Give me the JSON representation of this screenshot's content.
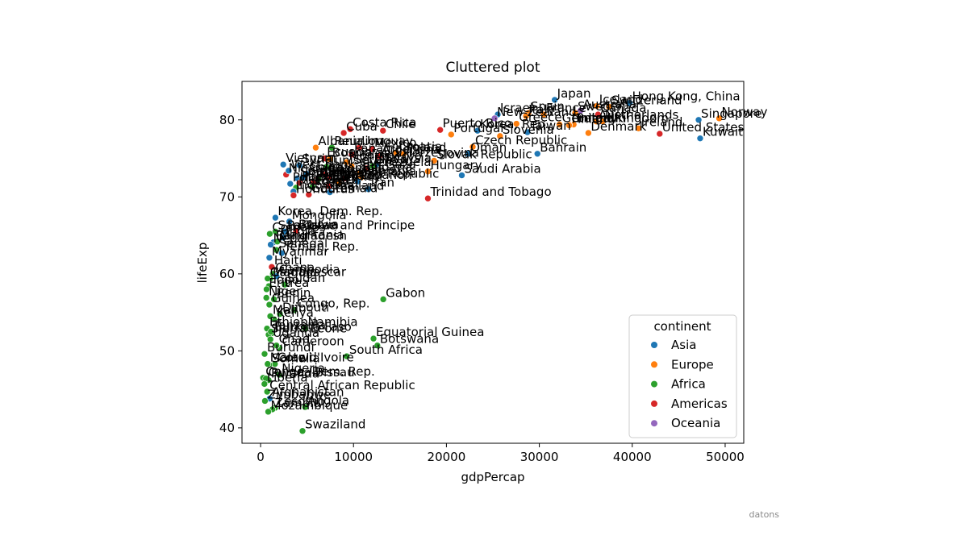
{
  "chart_data": {
    "type": "scatter",
    "title": "Cluttered plot",
    "xlabel": "gdpPercap",
    "ylabel": "lifeExp",
    "xlim": [
      -2000,
      52000
    ],
    "ylim": [
      38,
      85
    ],
    "xticks": [
      0,
      10000,
      20000,
      30000,
      40000,
      50000
    ],
    "yticks": [
      40,
      50,
      60,
      70,
      80
    ],
    "grid": false,
    "legend": {
      "title": "continent",
      "placement": "lower right",
      "entries": [
        "Asia",
        "Europe",
        "Africa",
        "Americas",
        "Oceania"
      ]
    },
    "colors": {
      "Asia": "#1f77b4",
      "Europe": "#ff7f0e",
      "Africa": "#2ca02c",
      "Americas": "#d62728",
      "Oceania": "#9467bd"
    },
    "points": [
      {
        "label": "Japan",
        "x": 31656,
        "y": 82.6,
        "continent": "Asia"
      },
      {
        "label": "Hong Kong, China",
        "x": 39725,
        "y": 82.2,
        "continent": "Asia"
      },
      {
        "label": "Iceland",
        "x": 36181,
        "y": 81.8,
        "continent": "Europe"
      },
      {
        "label": "Switzerland",
        "x": 37506,
        "y": 81.7,
        "continent": "Europe"
      },
      {
        "label": "Australia",
        "x": 34435,
        "y": 81.2,
        "continent": "Oceania"
      },
      {
        "label": "Spain",
        "x": 28821,
        "y": 80.9,
        "continent": "Europe"
      },
      {
        "label": "Sweden",
        "x": 33860,
        "y": 80.9,
        "continent": "Europe"
      },
      {
        "label": "Israel",
        "x": 25523,
        "y": 80.7,
        "continent": "Asia"
      },
      {
        "label": "France",
        "x": 30470,
        "y": 80.7,
        "continent": "Europe"
      },
      {
        "label": "Canada",
        "x": 36319,
        "y": 80.7,
        "continent": "Americas"
      },
      {
        "label": "Italy",
        "x": 28570,
        "y": 80.5,
        "continent": "Europe"
      },
      {
        "label": "New Zealand",
        "x": 25185,
        "y": 80.2,
        "continent": "Oceania"
      },
      {
        "label": "Norway",
        "x": 49357,
        "y": 80.2,
        "continent": "Europe"
      },
      {
        "label": "Austria",
        "x": 36126,
        "y": 79.8,
        "continent": "Europe"
      },
      {
        "label": "Netherlands",
        "x": 36798,
        "y": 79.8,
        "continent": "Europe"
      },
      {
        "label": "Greece",
        "x": 27538,
        "y": 79.5,
        "continent": "Europe"
      },
      {
        "label": "Belgium",
        "x": 33693,
        "y": 79.4,
        "continent": "Europe"
      },
      {
        "label": "United Kingdom",
        "x": 33203,
        "y": 79.4,
        "continent": "Europe"
      },
      {
        "label": "Germany",
        "x": 32170,
        "y": 79.4,
        "continent": "Europe"
      },
      {
        "label": "Finland",
        "x": 33207,
        "y": 79.3,
        "continent": "Europe"
      },
      {
        "label": "Ireland",
        "x": 40676,
        "y": 78.9,
        "continent": "Europe"
      },
      {
        "label": "Korea, Rep.",
        "x": 23348,
        "y": 78.6,
        "continent": "Asia"
      },
      {
        "label": "Taiwan",
        "x": 28718,
        "y": 78.4,
        "continent": "Asia"
      },
      {
        "label": "Denmark",
        "x": 35278,
        "y": 78.3,
        "continent": "Europe"
      },
      {
        "label": "Puerto Rico",
        "x": 19329,
        "y": 78.7,
        "continent": "Americas"
      },
      {
        "label": "Portugal",
        "x": 20510,
        "y": 78.1,
        "continent": "Europe"
      },
      {
        "label": "Slovenia",
        "x": 25768,
        "y": 77.9,
        "continent": "Europe"
      },
      {
        "label": "Singapore",
        "x": 47143,
        "y": 80.0,
        "continent": "Asia"
      },
      {
        "label": "United States",
        "x": 42952,
        "y": 78.2,
        "continent": "Americas"
      },
      {
        "label": "Kuwait",
        "x": 47307,
        "y": 77.6,
        "continent": "Asia"
      },
      {
        "label": "Costa Rica",
        "x": 9645,
        "y": 78.8,
        "continent": "Americas"
      },
      {
        "label": "Chile",
        "x": 13172,
        "y": 78.6,
        "continent": "Americas"
      },
      {
        "label": "Cuba",
        "x": 8948,
        "y": 78.3,
        "continent": "Americas"
      },
      {
        "label": "Czech Republic",
        "x": 22833,
        "y": 76.5,
        "continent": "Europe"
      },
      {
        "label": "Oman",
        "x": 22316,
        "y": 75.6,
        "continent": "Asia"
      },
      {
        "label": "Bahrain",
        "x": 29796,
        "y": 75.6,
        "continent": "Asia"
      },
      {
        "label": "Slovak Republic",
        "x": 18678,
        "y": 74.7,
        "continent": "Europe"
      },
      {
        "label": "Croatia",
        "x": 14619,
        "y": 75.7,
        "continent": "Europe"
      },
      {
        "label": "Hungary",
        "x": 18009,
        "y": 73.3,
        "continent": "Europe"
      },
      {
        "label": "Saudi Arabia",
        "x": 21655,
        "y": 72.8,
        "continent": "Asia"
      },
      {
        "label": "Trinidad and Tobago",
        "x": 18009,
        "y": 69.8,
        "continent": "Americas"
      },
      {
        "label": "Albania",
        "x": 5937,
        "y": 76.4,
        "continent": "Europe"
      },
      {
        "label": "Panama",
        "x": 9809,
        "y": 75.5,
        "continent": "Americas"
      },
      {
        "label": "Ecuador",
        "x": 6873,
        "y": 75.0,
        "continent": "Americas"
      },
      {
        "label": "Mexico",
        "x": 11978,
        "y": 76.2,
        "continent": "Americas"
      },
      {
        "label": "Argentina",
        "x": 12779,
        "y": 75.3,
        "continent": "Americas"
      },
      {
        "label": "Uruguay",
        "x": 10611,
        "y": 76.4,
        "continent": "Americas"
      },
      {
        "label": "Poland",
        "x": 15390,
        "y": 75.6,
        "continent": "Europe"
      },
      {
        "label": "Montenegro",
        "x": 9254,
        "y": 74.5,
        "continent": "Europe"
      },
      {
        "label": "Bosnia and Herzegovina",
        "x": 7446,
        "y": 74.9,
        "continent": "Europe"
      },
      {
        "label": "Serbia",
        "x": 9787,
        "y": 74.0,
        "continent": "Europe"
      },
      {
        "label": "Bulgaria",
        "x": 10681,
        "y": 73.0,
        "continent": "Europe"
      },
      {
        "label": "Romania",
        "x": 10808,
        "y": 72.5,
        "continent": "Europe"
      },
      {
        "label": "Malaysia",
        "x": 12452,
        "y": 74.2,
        "continent": "Asia"
      },
      {
        "label": "Vietnam",
        "x": 2442,
        "y": 74.2,
        "continent": "Asia"
      },
      {
        "label": "Nicaragua",
        "x": 2749,
        "y": 72.9,
        "continent": "Americas"
      },
      {
        "label": "Syria",
        "x": 4185,
        "y": 74.1,
        "continent": "Asia"
      },
      {
        "label": "Sri Lanka",
        "x": 3970,
        "y": 72.4,
        "continent": "Asia"
      },
      {
        "label": "China",
        "x": 4959,
        "y": 73.0,
        "continent": "Asia"
      },
      {
        "label": "Jamaica",
        "x": 7321,
        "y": 72.6,
        "continent": "Americas"
      },
      {
        "label": "Colombia",
        "x": 7007,
        "y": 72.9,
        "continent": "Americas"
      },
      {
        "label": "Brazil",
        "x": 9066,
        "y": 72.4,
        "continent": "Americas"
      },
      {
        "label": "Peru",
        "x": 7409,
        "y": 71.4,
        "continent": "Americas"
      },
      {
        "label": "Dominican Republic",
        "x": 6025,
        "y": 72.2,
        "continent": "Americas"
      },
      {
        "label": "El Salvador",
        "x": 5728,
        "y": 71.9,
        "continent": "Americas"
      },
      {
        "label": "Venezuela",
        "x": 11416,
        "y": 73.7,
        "continent": "Americas"
      },
      {
        "label": "Paraguay",
        "x": 4173,
        "y": 71.8,
        "continent": "Americas"
      },
      {
        "label": "West Bank and Gaza",
        "x": 3026,
        "y": 73.4,
        "continent": "Asia"
      },
      {
        "label": "Libya",
        "x": 12057,
        "y": 74.0,
        "continent": "Africa"
      },
      {
        "label": "Tunisia",
        "x": 7093,
        "y": 73.9,
        "continent": "Africa"
      },
      {
        "label": "Algeria",
        "x": 6223,
        "y": 72.3,
        "continent": "Africa"
      },
      {
        "label": "Morocco",
        "x": 3820,
        "y": 71.2,
        "continent": "Africa"
      },
      {
        "label": "Reunion",
        "x": 7670,
        "y": 76.4,
        "continent": "Africa"
      },
      {
        "label": "Turkey",
        "x": 8458,
        "y": 71.8,
        "continent": "Europe"
      },
      {
        "label": "Iran",
        "x": 11606,
        "y": 71.0,
        "continent": "Asia"
      },
      {
        "label": "Jordan",
        "x": 4519,
        "y": 72.5,
        "continent": "Asia"
      },
      {
        "label": "Egypt",
        "x": 5581,
        "y": 71.3,
        "continent": "Africa"
      },
      {
        "label": "Indonesia",
        "x": 3541,
        "y": 70.7,
        "continent": "Asia"
      },
      {
        "label": "Honduras",
        "x": 3548,
        "y": 70.2,
        "continent": "Americas"
      },
      {
        "label": "Guatemala",
        "x": 5186,
        "y": 70.3,
        "continent": "Americas"
      },
      {
        "label": "Lebanon",
        "x": 10461,
        "y": 72.0,
        "continent": "Asia"
      },
      {
        "label": "Philippines",
        "x": 3190,
        "y": 71.7,
        "continent": "Asia"
      },
      {
        "label": "Thailand",
        "x": 7458,
        "y": 70.6,
        "continent": "Asia"
      },
      {
        "label": "Korea, Dem. Rep.",
        "x": 1593,
        "y": 67.3,
        "continent": "Asia"
      },
      {
        "label": "Mongolia",
        "x": 3096,
        "y": 66.8,
        "continent": "Asia"
      },
      {
        "label": "Sao Tome and Principe",
        "x": 1598,
        "y": 65.5,
        "continent": "Africa"
      },
      {
        "label": "Bolivia",
        "x": 3822,
        "y": 65.6,
        "continent": "Americas"
      },
      {
        "label": "Comoros",
        "x": 986,
        "y": 65.2,
        "continent": "Africa"
      },
      {
        "label": "India",
        "x": 2452,
        "y": 64.7,
        "continent": "Asia"
      },
      {
        "label": "Pakistan",
        "x": 2606,
        "y": 65.5,
        "continent": "Asia"
      },
      {
        "label": "Bangladesh",
        "x": 1391,
        "y": 64.1,
        "continent": "Asia"
      },
      {
        "label": "Nepal",
        "x": 1091,
        "y": 63.8,
        "continent": "Asia"
      },
      {
        "label": "Senegal",
        "x": 1712,
        "y": 63.1,
        "continent": "Africa"
      },
      {
        "label": "Yemen, Rep.",
        "x": 2281,
        "y": 62.7,
        "continent": "Asia"
      },
      {
        "label": "Myanmar",
        "x": 944,
        "y": 62.1,
        "continent": "Asia"
      },
      {
        "label": "Haiti",
        "x": 1202,
        "y": 60.9,
        "continent": "Americas"
      },
      {
        "label": "Ghana",
        "x": 1327,
        "y": 60.0,
        "continent": "Africa"
      },
      {
        "label": "Cambodia",
        "x": 1714,
        "y": 59.7,
        "continent": "Asia"
      },
      {
        "label": "Mauritania",
        "x": 1803,
        "y": 64.2,
        "continent": "Africa"
      },
      {
        "label": "Sudan",
        "x": 2602,
        "y": 58.6,
        "continent": "Africa"
      },
      {
        "label": "Madagascar",
        "x": 1044,
        "y": 59.4,
        "continent": "Africa"
      },
      {
        "label": "Gambia",
        "x": 753,
        "y": 59.4,
        "continent": "Africa"
      },
      {
        "label": "Togo",
        "x": 883,
        "y": 58.4,
        "continent": "Africa"
      },
      {
        "label": "Eritrea",
        "x": 641,
        "y": 58.0,
        "continent": "Africa"
      },
      {
        "label": "Benin",
        "x": 1441,
        "y": 56.7,
        "continent": "Africa"
      },
      {
        "label": "Niger",
        "x": 620,
        "y": 56.9,
        "continent": "Africa"
      },
      {
        "label": "Guinea",
        "x": 943,
        "y": 56.0,
        "continent": "Africa"
      },
      {
        "label": "Gabon",
        "x": 13206,
        "y": 56.7,
        "continent": "Africa"
      },
      {
        "label": "Congo, Rep.",
        "x": 3633,
        "y": 55.3,
        "continent": "Africa"
      },
      {
        "label": "Djibouti",
        "x": 2082,
        "y": 54.8,
        "continent": "Africa"
      },
      {
        "label": "Kenya",
        "x": 1463,
        "y": 54.1,
        "continent": "Africa"
      },
      {
        "label": "Mali",
        "x": 1043,
        "y": 54.5,
        "continent": "Africa"
      },
      {
        "label": "Ethiopia",
        "x": 691,
        "y": 52.9,
        "continent": "Africa"
      },
      {
        "label": "Namibia",
        "x": 4811,
        "y": 52.9,
        "continent": "Africa"
      },
      {
        "label": "Burkina Faso",
        "x": 1217,
        "y": 52.3,
        "continent": "Africa"
      },
      {
        "label": "Sierra Leone",
        "x": 863,
        "y": 52.1,
        "continent": "Africa"
      },
      {
        "label": "Uganda",
        "x": 1056,
        "y": 51.5,
        "continent": "Africa"
      },
      {
        "label": "Equatorial Guinea",
        "x": 12154,
        "y": 51.6,
        "continent": "Africa"
      },
      {
        "label": "Botswana",
        "x": 12570,
        "y": 50.7,
        "continent": "Africa"
      },
      {
        "label": "Cameroon",
        "x": 2042,
        "y": 50.4,
        "continent": "Africa"
      },
      {
        "label": "South Africa",
        "x": 9270,
        "y": 49.3,
        "continent": "Africa"
      },
      {
        "label": "Burundi",
        "x": 430,
        "y": 49.6,
        "continent": "Africa"
      },
      {
        "label": "Cote d'Ivoire",
        "x": 1545,
        "y": 48.3,
        "continent": "Africa"
      },
      {
        "label": "Somalia",
        "x": 926,
        "y": 48.2,
        "continent": "Africa"
      },
      {
        "label": "Rwanda",
        "x": 863,
        "y": 46.2,
        "continent": "Africa"
      },
      {
        "label": "Nigeria",
        "x": 2014,
        "y": 46.9,
        "continent": "Africa"
      },
      {
        "label": "Congo, Dem. Rep.",
        "x": 278,
        "y": 46.5,
        "continent": "Africa"
      },
      {
        "label": "Guinea-Bissau",
        "x": 579,
        "y": 46.4,
        "continent": "Africa"
      },
      {
        "label": "Liberia",
        "x": 415,
        "y": 45.7,
        "continent": "Africa"
      },
      {
        "label": "Central African Republic",
        "x": 706,
        "y": 44.7,
        "continent": "Africa"
      },
      {
        "label": "Angola",
        "x": 4797,
        "y": 42.7,
        "continent": "Africa"
      },
      {
        "label": "Malawi",
        "x": 759,
        "y": 48.3,
        "continent": "Africa"
      },
      {
        "label": "Chad",
        "x": 1704,
        "y": 50.7,
        "continent": "Africa"
      },
      {
        "label": "Tanzania",
        "x": 1107,
        "y": 52.5,
        "continent": "Africa"
      },
      {
        "label": "Afghanistan",
        "x": 975,
        "y": 43.8,
        "continent": "Asia"
      },
      {
        "label": "Lesotho",
        "x": 1569,
        "y": 42.6,
        "continent": "Africa"
      },
      {
        "label": "Zimbabwe",
        "x": 470,
        "y": 43.5,
        "continent": "Africa"
      },
      {
        "label": "Zambia",
        "x": 1271,
        "y": 42.4,
        "continent": "Africa"
      },
      {
        "label": "Mozambique",
        "x": 824,
        "y": 42.1,
        "continent": "Africa"
      },
      {
        "label": "Swaziland",
        "x": 4513,
        "y": 39.6,
        "continent": "Africa"
      }
    ]
  },
  "watermark": "datons"
}
